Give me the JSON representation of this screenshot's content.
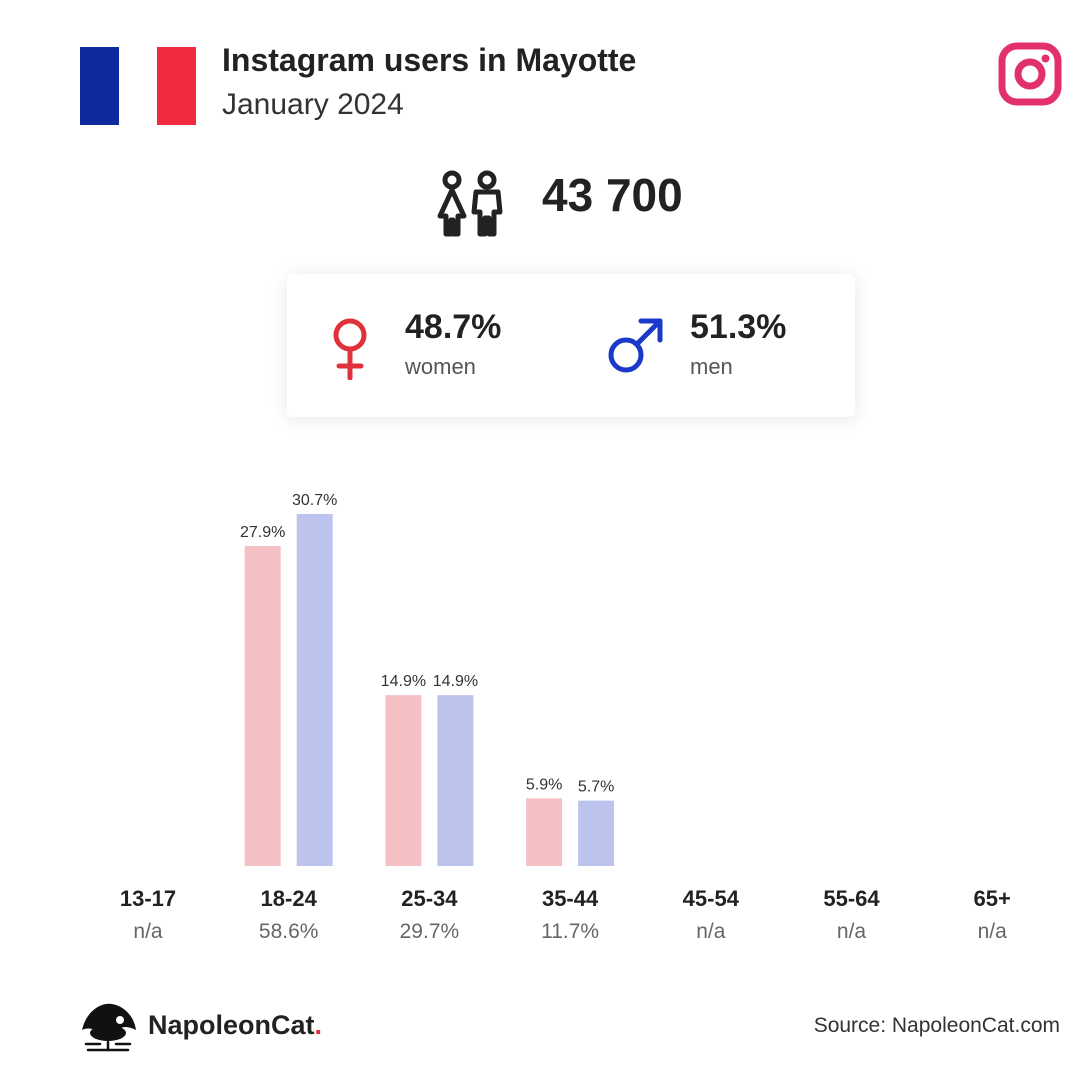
{
  "header": {
    "title": "Instagram users in Mayotte",
    "subtitle": "January 2024"
  },
  "flag": {
    "colors": [
      "#0f2a9c",
      "#ffffff",
      "#ef2b3d"
    ],
    "name": "flag-icon"
  },
  "total_users": "43 700",
  "gender": {
    "women": {
      "pct": "48.7%",
      "label": "women",
      "color": "#e0303a"
    },
    "men": {
      "pct": "51.3%",
      "label": "men",
      "color": "#1a39c9"
    }
  },
  "footer": {
    "brand": "NapoleonCat",
    "brand_dot": ".",
    "source": "Source: NapoleonCat.com"
  },
  "colors": {
    "women_bar": "#f5c0c4",
    "men_bar": "#bcc4ee",
    "instagram": "#e1306c"
  },
  "chart_data": {
    "type": "bar",
    "categories": [
      "13-17",
      "18-24",
      "25-34",
      "35-44",
      "45-54",
      "55-64",
      "65+"
    ],
    "totals": [
      "n/a",
      "58.6%",
      "29.7%",
      "11.7%",
      "n/a",
      "n/a",
      "n/a"
    ],
    "series": [
      {
        "values": [
          null,
          27.9,
          14.9,
          5.9,
          null,
          null,
          null
        ],
        "labels": [
          "",
          "27.9%",
          "14.9%",
          "5.9%",
          "",
          "",
          ""
        ]
      },
      {
        "values": [
          null,
          30.7,
          14.9,
          5.7,
          null,
          null,
          null
        ],
        "labels": [
          "",
          "30.7%",
          "14.9%",
          "5.7%",
          "",
          "",
          ""
        ]
      }
    ],
    "ylim": [
      0,
      30.7
    ]
  }
}
